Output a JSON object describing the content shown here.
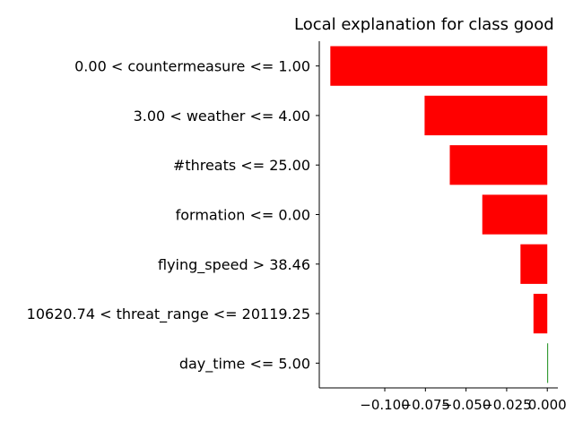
{
  "chart_data": {
    "type": "bar",
    "orientation": "horizontal",
    "title": "Local explanation for class good",
    "xlabel": "",
    "ylabel": "",
    "categories": [
      "day_time <= 5.00",
      "10620.74 < threat_range <= 20119.25",
      "flying_speed > 38.46",
      "formation <= 0.00",
      "#threats <= 25.00",
      "3.00 < weather <= 4.00",
      "0.00 < countermeasure <= 1.00"
    ],
    "values": [
      0.0005,
      -0.0085,
      -0.0165,
      -0.04,
      -0.06,
      -0.0755,
      -0.1335
    ],
    "xlim": [
      -0.1403,
      0.0065
    ],
    "xticks": [
      -0.1,
      -0.075,
      -0.05,
      -0.025,
      0.0
    ],
    "xtick_labels": [
      "−0.100",
      "−0.075",
      "−0.050",
      "−0.025",
      "0.000"
    ],
    "grid": false,
    "colors": {
      "positive": "#008000",
      "negative": "#ff0000"
    }
  }
}
